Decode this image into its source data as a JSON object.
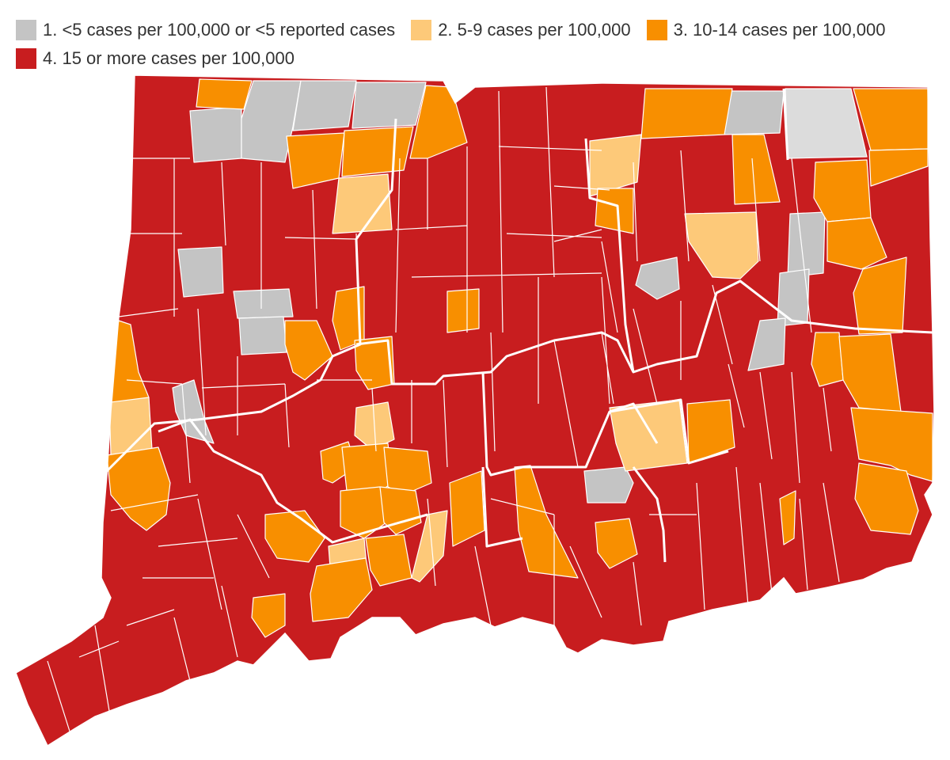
{
  "legend": {
    "items": [
      {
        "label": "1. <5 cases per 100,000 or <5 reported cases",
        "color": "#c4c4c4"
      },
      {
        "label": "2. 5-9 cases per 100,000",
        "color": "#fdc979"
      },
      {
        "label": "3. 10-14 cases per 100,000",
        "color": "#f88f00"
      },
      {
        "label": "4. 15 or more cases per 100,000",
        "color": "#c81d1f"
      }
    ]
  },
  "colors": {
    "c1": "#c4c4c4",
    "c1_light": "#dcdcdc",
    "c2": "#fdc979",
    "c3": "#f88f00",
    "c4": "#c81d1f",
    "border": "#ffffff"
  },
  "map": {
    "towns_by_category": {
      "c1_count": 12,
      "c2_count": 10,
      "c3_count": 25,
      "c4_count": 122
    }
  }
}
